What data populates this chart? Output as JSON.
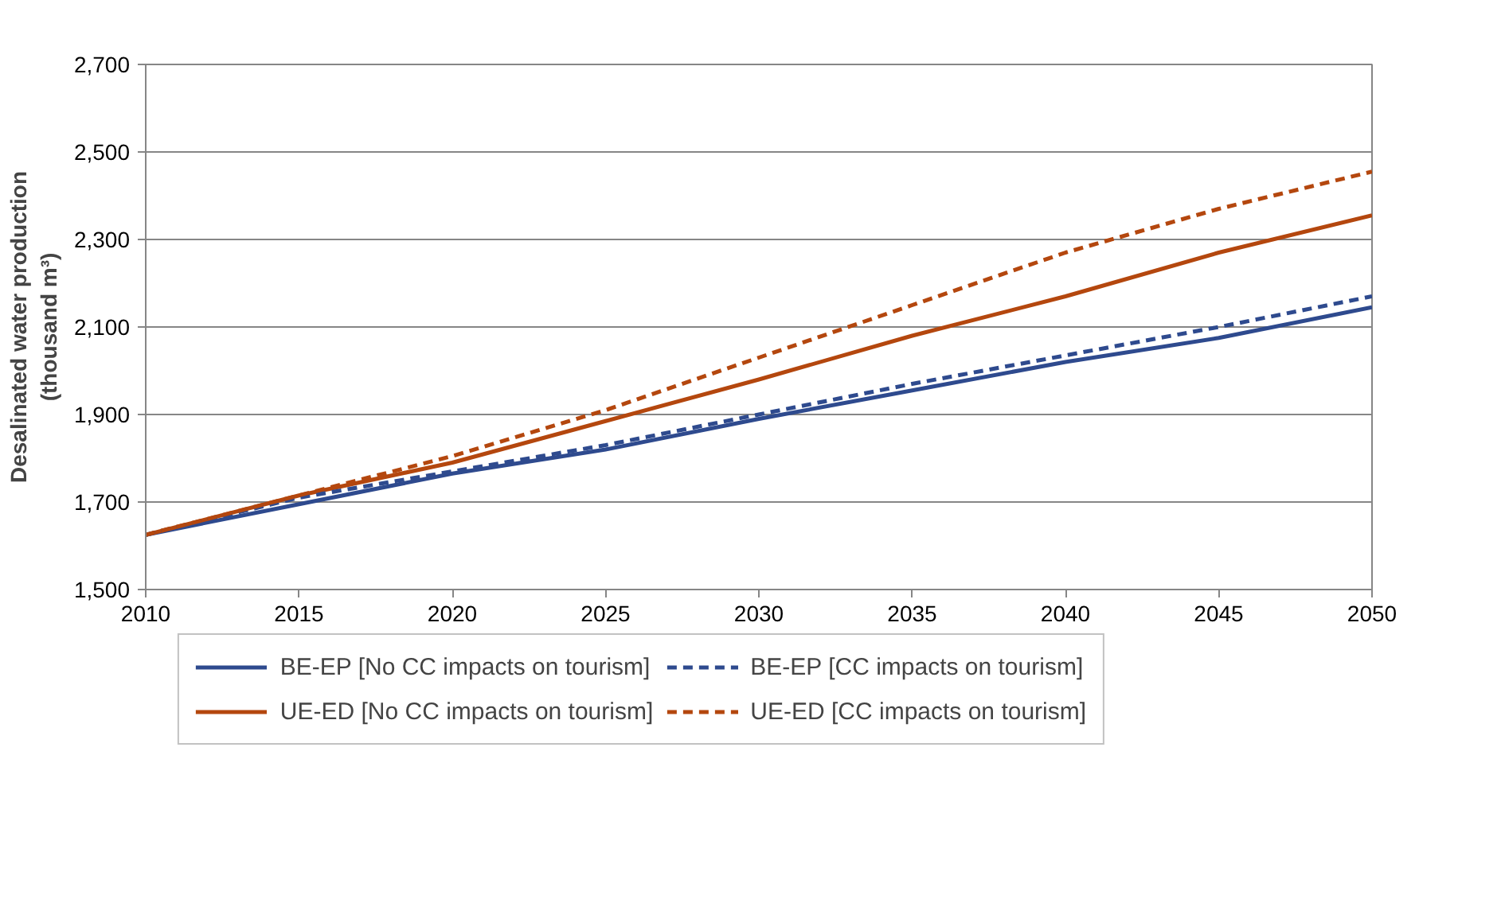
{
  "chart_data": {
    "type": "line",
    "ylabel": "Desalinated water production\n(thousand m³)",
    "x": [
      2010,
      2015,
      2020,
      2025,
      2030,
      2035,
      2040,
      2045,
      2050
    ],
    "series": [
      {
        "name": "BE-EP [No CC impacts on tourism]",
        "color": "#2e4a8e",
        "line_style": "solid",
        "values": [
          1625,
          1695,
          1765,
          1820,
          1890,
          1955,
          2020,
          2075,
          2145
        ]
      },
      {
        "name": "UE-ED [No CC impacts on tourism]",
        "color": "#b4470e",
        "line_style": "solid",
        "values": [
          1625,
          1715,
          1790,
          1885,
          1980,
          2080,
          2170,
          2270,
          2355
        ]
      },
      {
        "name": "BE-EP [CC impacts on tourism]",
        "color": "#2e4a8e",
        "line_style": "dashed",
        "values": [
          1625,
          1710,
          1770,
          1830,
          1900,
          1970,
          2035,
          2100,
          2170
        ]
      },
      {
        "name": "UE-ED [CC impacts on tourism]",
        "color": "#b4470e",
        "line_style": "dashed",
        "values": [
          1625,
          1715,
          1805,
          1910,
          2030,
          2150,
          2270,
          2370,
          2455
        ]
      }
    ],
    "xlim": [
      2010,
      2050
    ],
    "xticks": [
      2010,
      2015,
      2020,
      2025,
      2030,
      2035,
      2040,
      2045,
      2050
    ],
    "ylim": [
      1500,
      2700
    ],
    "yticks": [
      {
        "value": 1500,
        "label": "1,500"
      },
      {
        "value": 1700,
        "label": "1,700"
      },
      {
        "value": 1900,
        "label": "1,900"
      },
      {
        "value": 2100,
        "label": "2,100"
      },
      {
        "value": 2300,
        "label": "2,300"
      },
      {
        "value": 2500,
        "label": "2,500"
      },
      {
        "value": 2700,
        "label": "2,700"
      }
    ],
    "grid": "y",
    "legend": "bottom"
  }
}
